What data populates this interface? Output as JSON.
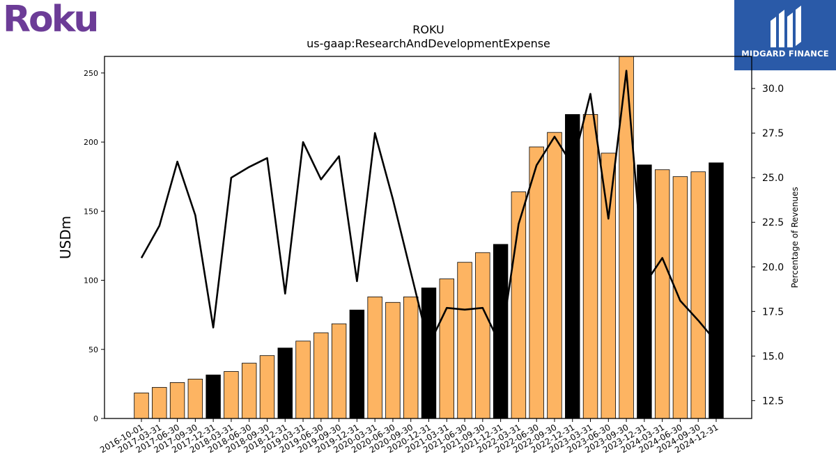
{
  "brand": {
    "company_logo_text": "Roku",
    "publisher_logo_text": "MIDGARD FINANCE",
    "company_color": "#6c3c97",
    "publisher_color": "#2a5aa8"
  },
  "chart_data": {
    "type": "bar",
    "title": "ROKU",
    "subtitle": "us-gaap:ResearchAndDevelopmentExpense",
    "ylabel": "USDm",
    "y2label": "Percentage of Revenues",
    "ylim": [
      0,
      262
    ],
    "y2lim": [
      11.5,
      31.8
    ],
    "yticks": [
      0,
      50,
      100,
      150,
      200,
      250
    ],
    "y2ticks": [
      "12.5",
      "15.0",
      "17.5",
      "20.0",
      "22.5",
      "25.0",
      "27.5",
      "30.0"
    ],
    "categories": [
      "2016-10-01",
      "2017-03-31",
      "2017-06-30",
      "2017-09-30",
      "2017-12-31",
      "2018-03-31",
      "2018-06-30",
      "2018-09-30",
      "2018-12-31",
      "2019-03-31",
      "2019-06-30",
      "2019-09-30",
      "2019-12-31",
      "2020-03-31",
      "2020-06-30",
      "2020-09-30",
      "2020-12-31",
      "2021-03-31",
      "2021-06-30",
      "2021-09-30",
      "2021-12-31",
      "2022-03-31",
      "2022-06-30",
      "2022-09-30",
      "2022-12-31",
      "2023-03-31",
      "2023-06-30",
      "2023-09-30",
      "2023-12-31",
      "2024-03-31",
      "2024-06-30",
      "2024-09-30",
      "2024-12-31"
    ],
    "series": [
      {
        "type": "bar",
        "values": [
          18.5,
          22.5,
          26,
          28.5,
          31.5,
          34,
          40,
          45.5,
          51,
          56,
          62,
          68.5,
          78.5,
          88,
          84,
          88,
          94.5,
          101,
          113,
          120,
          126,
          164,
          196.5,
          207,
          220,
          220,
          192,
          262,
          183.5,
          180,
          175,
          178.5,
          185
        ],
        "highlight": [
          false,
          false,
          false,
          false,
          true,
          false,
          false,
          false,
          true,
          false,
          false,
          false,
          true,
          false,
          false,
          false,
          true,
          false,
          false,
          false,
          true,
          false,
          false,
          false,
          true,
          false,
          false,
          false,
          true,
          false,
          false,
          false,
          true
        ],
        "color": "#fdb462",
        "highlight_color": "#000000"
      },
      {
        "type": "line",
        "axis": "right",
        "values": [
          20.5,
          22.3,
          25.9,
          22.9,
          16.6,
          25.0,
          25.6,
          26.1,
          18.5,
          27.0,
          24.9,
          26.2,
          19.2,
          27.5,
          23.8,
          19.7,
          15.6,
          17.7,
          17.6,
          17.7,
          15.6,
          22.4,
          25.7,
          27.3,
          25.7,
          29.7,
          22.7,
          31.0,
          19.0,
          20.5,
          18.1,
          17.0,
          15.8
        ],
        "color": "#000000"
      }
    ]
  }
}
